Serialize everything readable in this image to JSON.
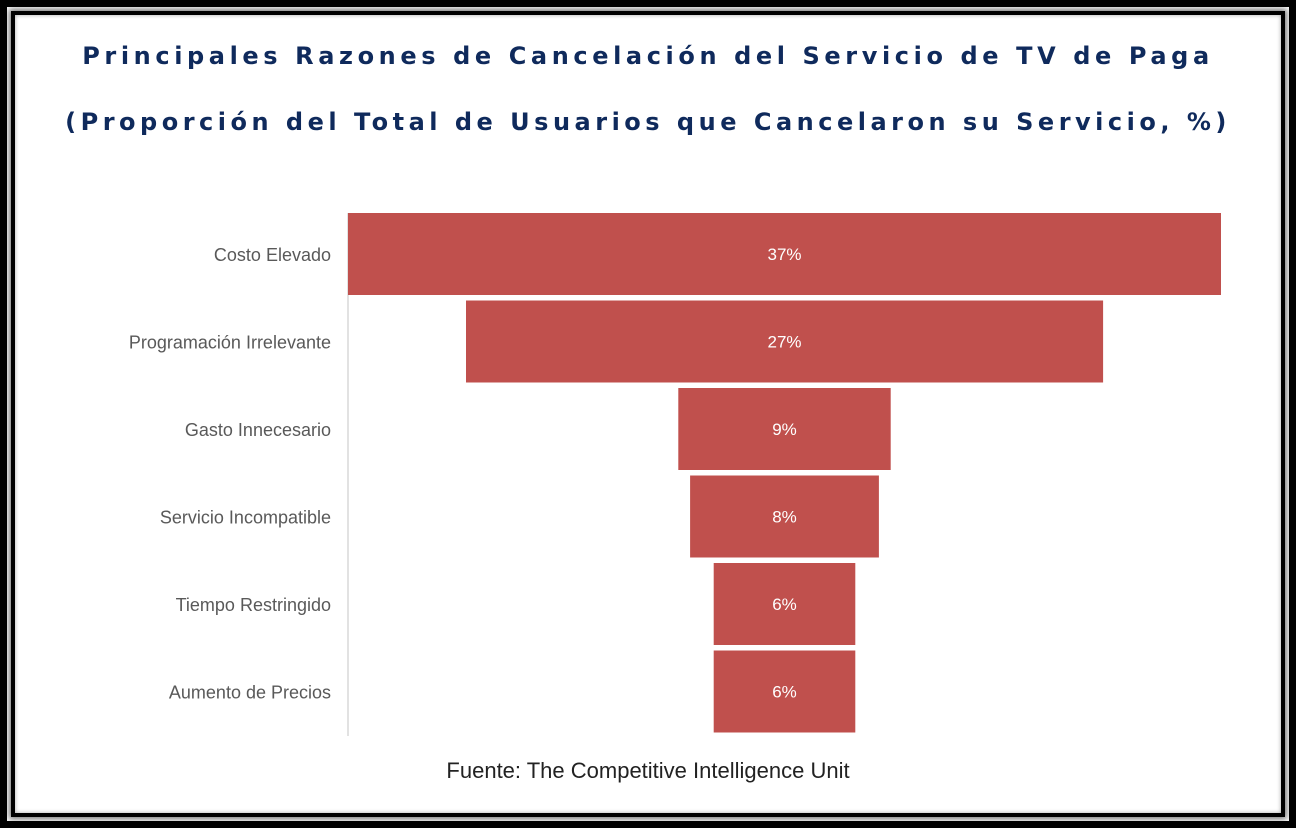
{
  "colors": {
    "bar": "#c0504d",
    "title": "#0f2a5c",
    "axis": "#d9d9d9"
  },
  "title_line1": "Principales Razones de Cancelación del Servicio de TV de Paga",
  "title_line2": "(Proporción del Total de Usuarios que Cancelaron su Servicio, %)",
  "source": "Fuente: The Competitive Intelligence Unit",
  "chart_data": {
    "type": "bar",
    "subtype": "funnel",
    "title": "Principales Razones de Cancelación del Servicio de TV de Paga",
    "subtitle": "(Proporción del Total de Usuarios que Cancelaron su Servicio, %)",
    "categories": [
      "Costo Elevado",
      "Programación Irrelevante",
      "Gasto Innecesario",
      "Servicio Incompatible",
      "Tiempo Restringido",
      "Aumento de Precios"
    ],
    "values": [
      37,
      27,
      9,
      8,
      6,
      6
    ],
    "value_labels": [
      "37%",
      "27%",
      "9%",
      "8%",
      "6%",
      "6%"
    ],
    "xlabel": "",
    "ylabel": "",
    "unit": "%"
  }
}
